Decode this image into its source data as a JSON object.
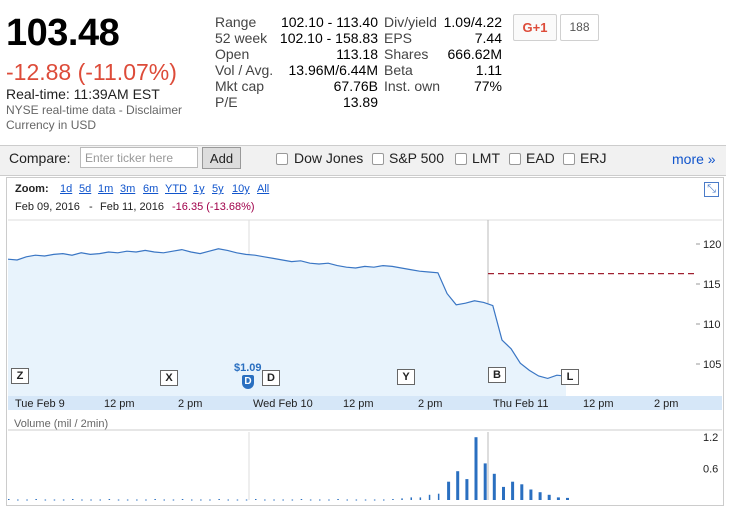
{
  "quote": {
    "price": "103.48",
    "change": "-12.88 (-11.07%)",
    "realtime": "Real-time:   11:39AM EST",
    "source": "NYSE real-time data - Disclaimer",
    "currency": "Currency in USD"
  },
  "stats_left": [
    {
      "label": "Range",
      "value": "102.10 - 113.40"
    },
    {
      "label": "52 week",
      "value": "102.10 - 158.83"
    },
    {
      "label": "Open",
      "value": "113.18"
    },
    {
      "label": "Vol / Avg.",
      "value": "13.96M/6.44M"
    },
    {
      "label": "Mkt cap",
      "value": "67.76B"
    },
    {
      "label": "P/E",
      "value": "13.89"
    }
  ],
  "stats_right": [
    {
      "label": "Div/yield",
      "value": "1.09/4.22"
    },
    {
      "label": "EPS",
      "value": "7.44"
    },
    {
      "label": "Shares",
      "value": "666.62M"
    },
    {
      "label": "Beta",
      "value": "1.11"
    },
    {
      "label": "Inst. own",
      "value": "77%"
    }
  ],
  "social": {
    "gplus_label": "G+1",
    "count": "188"
  },
  "compare": {
    "label": "Compare:",
    "placeholder": "Enter ticker here",
    "add_label": "Add",
    "options": [
      "Dow Jones",
      "S&P 500",
      "LMT",
      "EAD",
      "ERJ"
    ],
    "more_label": "more »"
  },
  "zoom": {
    "label": "Zoom:",
    "options": [
      "1d",
      "5d",
      "1m",
      "3m",
      "6m",
      "YTD",
      "1y",
      "5y",
      "10y",
      "All"
    ]
  },
  "date_range": {
    "from": "Feb 09, 2016",
    "sep": "-",
    "to": "Feb 11, 2016",
    "change": "-16.35 (-13.68%)"
  },
  "chart": {
    "y_ticks": [
      "120",
      "115",
      "110",
      "105"
    ],
    "x_ticks": [
      "Tue Feb 9",
      "12 pm",
      "2 pm",
      "Wed Feb 10",
      "12 pm",
      "2 pm",
      "Thu Feb 11",
      "12 pm",
      "2 pm"
    ],
    "vol_label": "Volume (mil / 2min)",
    "vol_ticks": [
      "1.2",
      "0.6"
    ],
    "flags": [
      "Z",
      "X",
      "D",
      "Y",
      "B",
      "L"
    ],
    "div_annotation": "$1.09",
    "div_flag": "D"
  },
  "chart_data": {
    "type": "line",
    "y_range": [
      101,
      123
    ],
    "prev_close": 116.3,
    "price_series": [
      118.1,
      118.0,
      118.4,
      118.6,
      118.5,
      118.7,
      118.8,
      118.6,
      118.9,
      118.7,
      118.8,
      119.0,
      118.9,
      119.1,
      119.0,
      119.2,
      119.0,
      118.9,
      119.1,
      119.3,
      119.0,
      118.8,
      119.1,
      119.4,
      119.2,
      118.9,
      118.7,
      118.6,
      118.4,
      118.2,
      118.0,
      117.8,
      117.9,
      117.6,
      117.5,
      117.6,
      117.3,
      117.1,
      117.0,
      117.2,
      117.1,
      117.3,
      117.2,
      117.0,
      116.8,
      116.6,
      116.5,
      116.4,
      113.8,
      112.4,
      112.6,
      112.9,
      112.7,
      112.3,
      108.0,
      106.9,
      105.1,
      104.2,
      103.5,
      103.2,
      103.6,
      103.48
    ],
    "volume_series": [
      0.02,
      0.01,
      0.01,
      0.02,
      0.01,
      0.01,
      0.01,
      0.02,
      0.01,
      0.01,
      0.01,
      0.02,
      0.01,
      0.01,
      0.01,
      0.01,
      0.02,
      0.01,
      0.01,
      0.02,
      0.01,
      0.01,
      0.01,
      0.02,
      0.01,
      0.01,
      0.01,
      0.02,
      0.01,
      0.01,
      0.01,
      0.01,
      0.02,
      0.01,
      0.01,
      0.01,
      0.02,
      0.01,
      0.01,
      0.01,
      0.01,
      0.01,
      0.02,
      0.03,
      0.05,
      0.05,
      0.1,
      0.12,
      0.35,
      0.55,
      0.4,
      1.2,
      0.7,
      0.5,
      0.25,
      0.35,
      0.3,
      0.2,
      0.15,
      0.1,
      0.05,
      0.04
    ]
  }
}
